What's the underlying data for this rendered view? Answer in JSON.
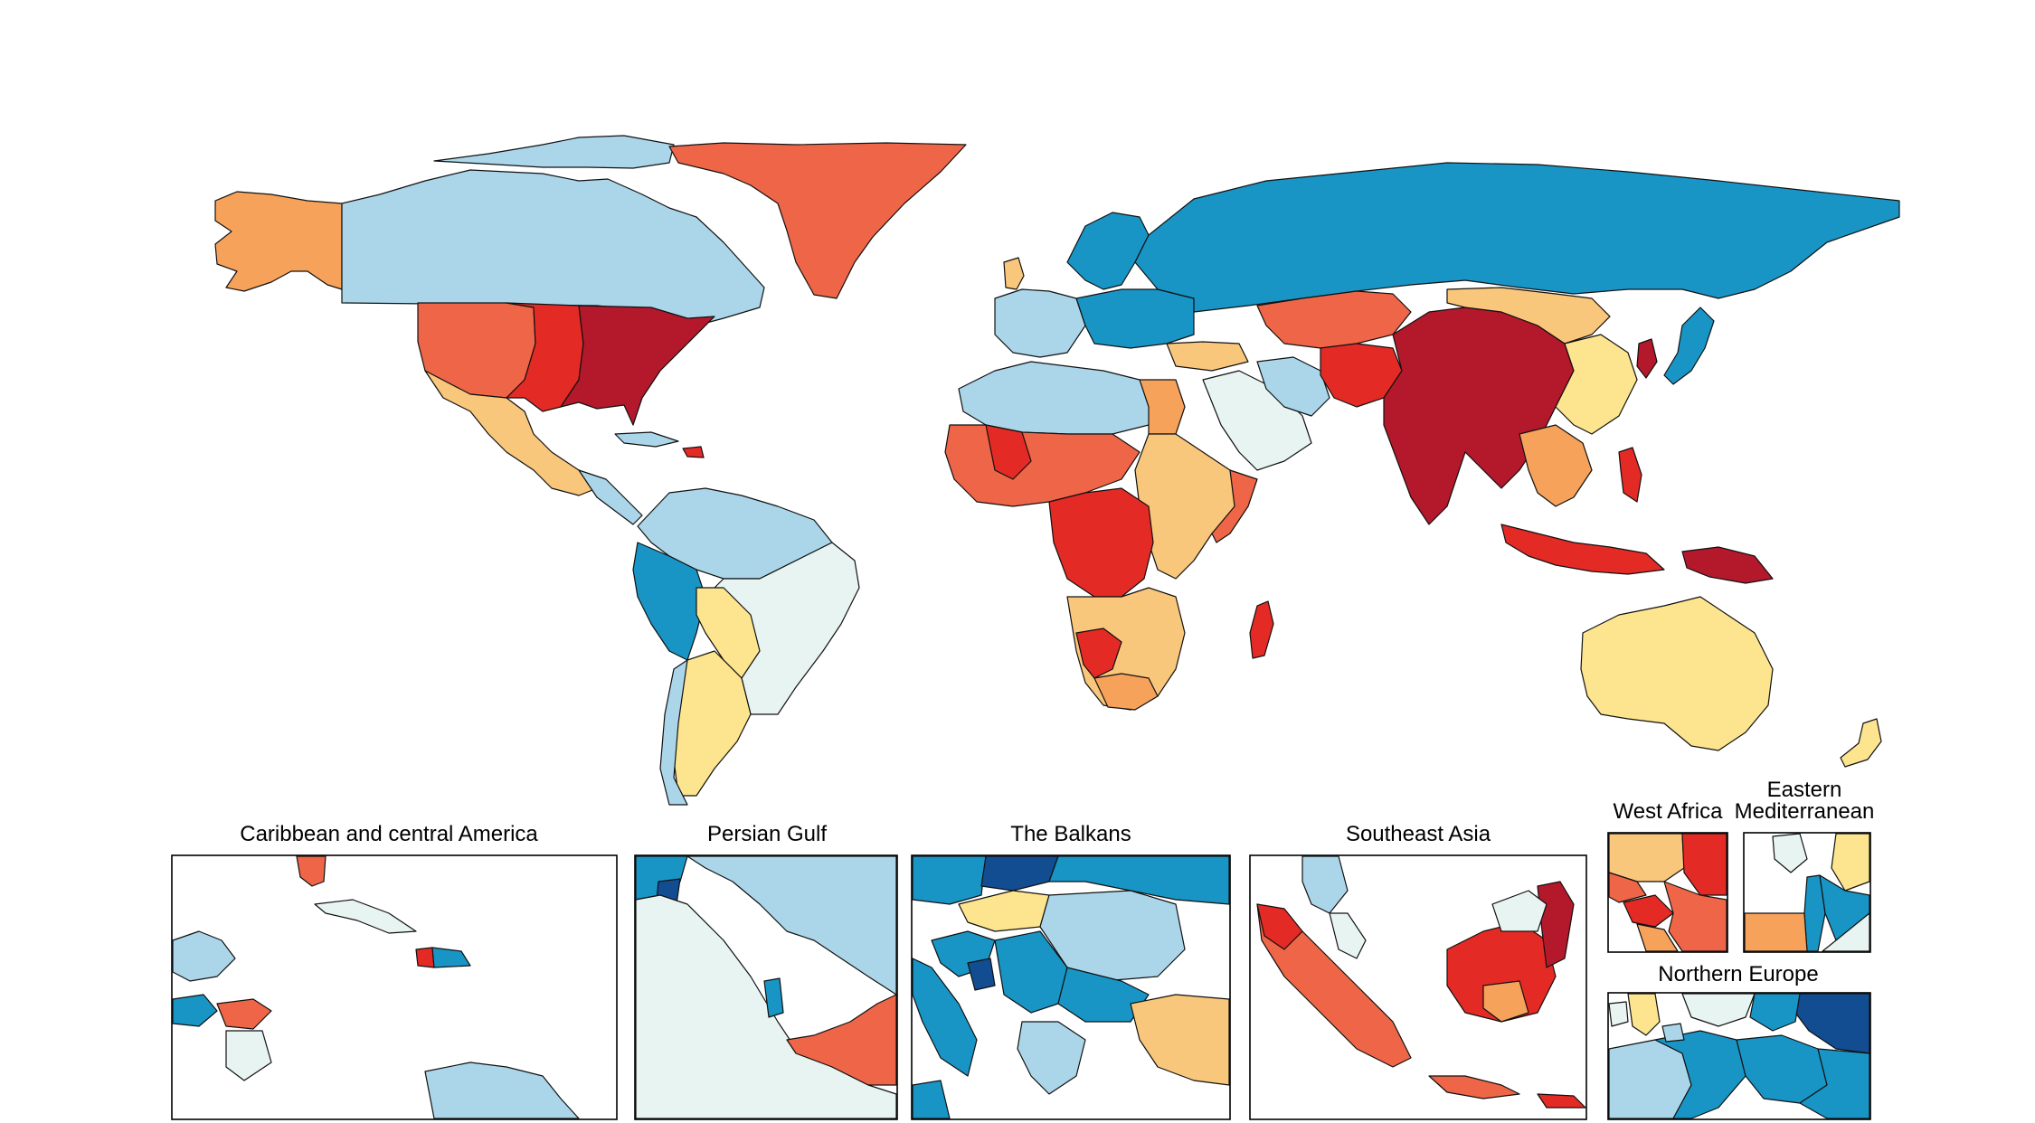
{
  "palette": {
    "dark_red": "#b3182b",
    "red": "#e42a25",
    "orange_red": "#ee6547",
    "orange": "#f6a25b",
    "light_orange": "#f9c77b",
    "yellow": "#fde58f",
    "pale": "#e8f4f2",
    "light_blue": "#abd6ea",
    "mid_blue": "#1895c5",
    "dark_blue": "#124d92",
    "outline": "#111111",
    "background": "#ffffff"
  },
  "insets": [
    {
      "id": "caribbean",
      "title": "Caribbean and central America",
      "title_lines": [
        "Caribbean and central America"
      ]
    },
    {
      "id": "persian-gulf",
      "title": "Persian Gulf",
      "title_lines": [
        "Persian Gulf"
      ]
    },
    {
      "id": "balkans",
      "title": "The Balkans",
      "title_lines": [
        "The Balkans"
      ]
    },
    {
      "id": "southeast-asia",
      "title": "Southeast Asia",
      "title_lines": [
        "Southeast Asia"
      ]
    },
    {
      "id": "west-africa",
      "title": "West Africa",
      "title_lines": [
        "West Africa"
      ]
    },
    {
      "id": "eastern-mediterranean",
      "title": "Eastern Mediterranean",
      "title_lines": [
        "Eastern",
        "Mediterranean"
      ]
    },
    {
      "id": "northern-europe",
      "title": "Northern Europe",
      "title_lines": [
        "Northern Europe"
      ]
    }
  ]
}
